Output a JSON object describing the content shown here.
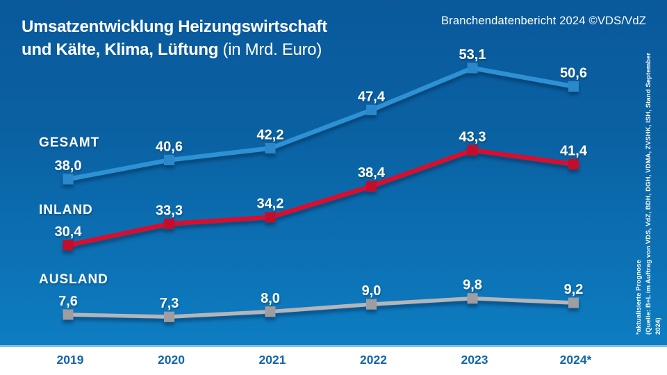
{
  "title": {
    "line1": "Umsatzentwicklung Heizungswirtschaft",
    "line2_bold": "und Kälte, Klima, Lüftung",
    "line2_regular": "(in Mrd. Euro)"
  },
  "credit": "Branchendatenbericht 2024 ©VDS/VdZ",
  "source_note": {
    "line1": "*aktualisierte Prognose",
    "line2": "(Quelle: B+L im Auftrag von VDS, VdZ, BDH, DGH, VDMA, ZVSHK, ISH, Stand September 2024)"
  },
  "chart_data": {
    "type": "line",
    "title": "Umsatzentwicklung Heizungswirtschaft und Kälte, Klima, Lüftung (in Mrd. Euro)",
    "unit": "Mrd. Euro",
    "categories": [
      "2019",
      "2020",
      "2021",
      "2022",
      "2023",
      "2024*"
    ],
    "grid": false,
    "legend_position": "inline-left",
    "series": [
      {
        "name": "GESAMT",
        "color": "#2e91d4",
        "marker_color": "#2b89cb",
        "values": [
          38.0,
          40.6,
          42.2,
          47.4,
          53.1,
          50.6
        ],
        "labels": [
          "38,0",
          "40,6",
          "42,2",
          "47,4",
          "53,1",
          "50,6"
        ]
      },
      {
        "name": "INLAND",
        "color": "#d90f2e",
        "marker_color": "#c40d2a",
        "values": [
          30.4,
          33.3,
          34.2,
          38.4,
          43.3,
          41.4
        ],
        "labels": [
          "30,4",
          "33,3",
          "34,2",
          "38,4",
          "43,3",
          "41,4"
        ]
      },
      {
        "name": "AUSLAND",
        "color": "#b5b5b9",
        "marker_color": "#9d9da2",
        "values": [
          7.6,
          7.3,
          8.0,
          9.0,
          9.8,
          9.2
        ],
        "labels": [
          "7,6",
          "7,3",
          "8,0",
          "9,0",
          "9,8",
          "9,2"
        ]
      }
    ]
  },
  "colors": {
    "background_top": "#09599b",
    "background_bottom": "#0e81c6",
    "axis_band": "#ffffff",
    "band_separator": "#84bedf",
    "year_label": "#1266a8",
    "label_text": "#ffffff"
  }
}
